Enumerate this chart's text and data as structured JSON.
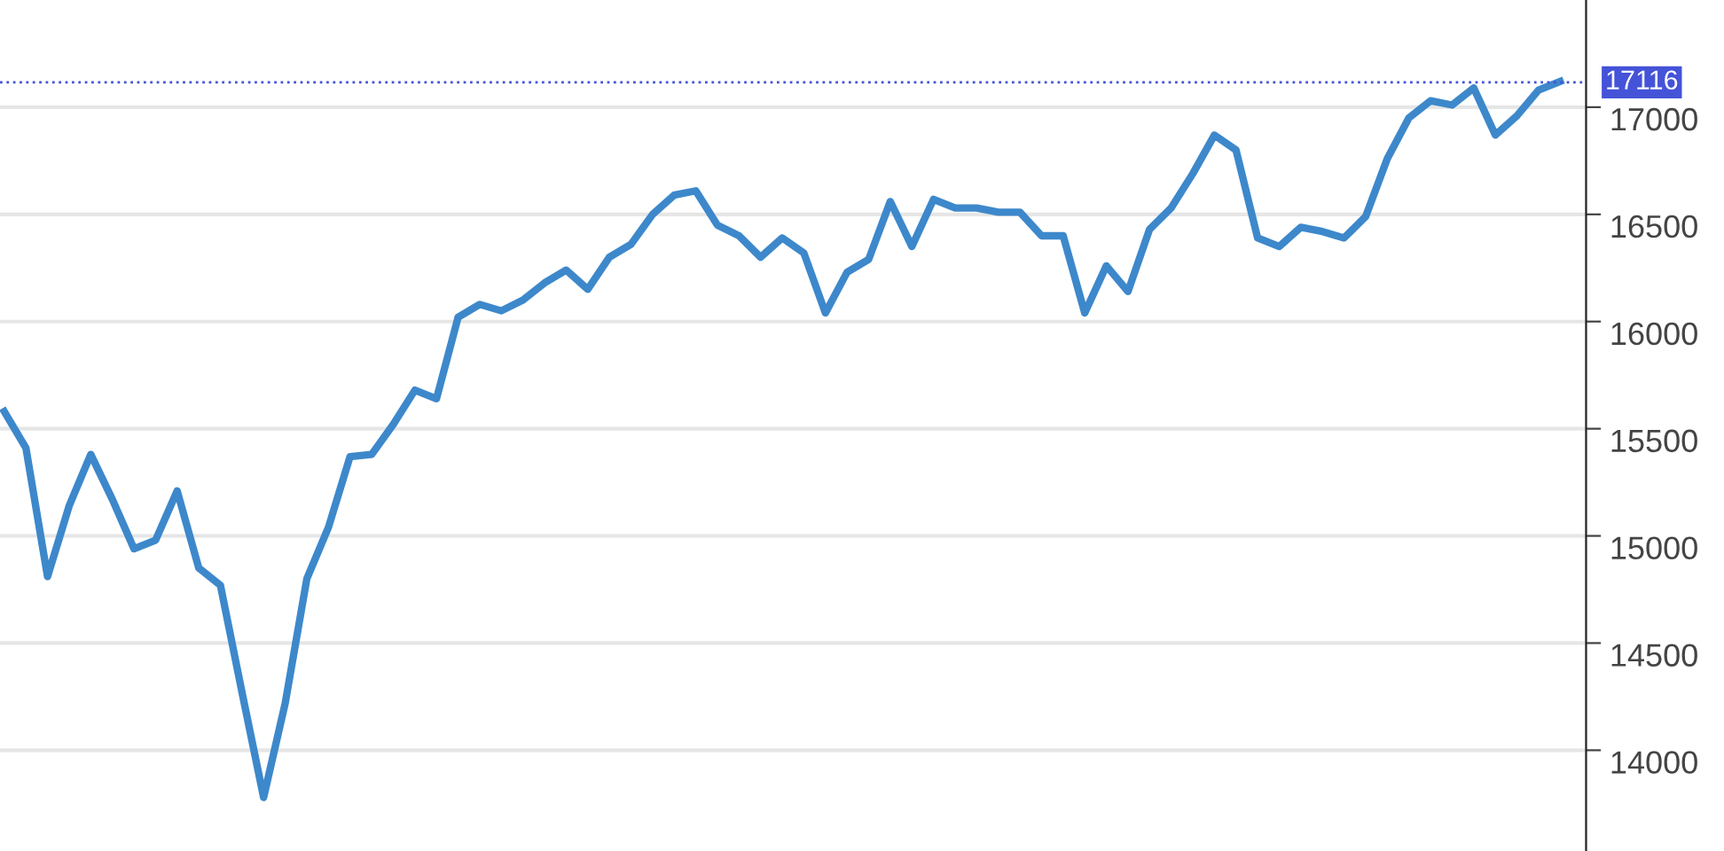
{
  "chart_data": {
    "type": "line",
    "categories": [
      null,
      null,
      null,
      null,
      null,
      null,
      null,
      null,
      null,
      null,
      null,
      null,
      null,
      null,
      null,
      null,
      null,
      null,
      null,
      null,
      null,
      null,
      null,
      null,
      null,
      null,
      null,
      null,
      null,
      null,
      null,
      null,
      null,
      null,
      null,
      null,
      null,
      null,
      null,
      null,
      null,
      null,
      null,
      null,
      null,
      null,
      null,
      null,
      null,
      null,
      null,
      null,
      null,
      null,
      null,
      null,
      null,
      null,
      null,
      null,
      null,
      null,
      null,
      null,
      null,
      null,
      null,
      null,
      null,
      null,
      null,
      null,
      null
    ],
    "series": [
      {
        "color": "#3d88cb",
        "values": [
          15580,
          15410,
          14810,
          15140,
          15380,
          15170,
          14940,
          14980,
          15210,
          14850,
          14770,
          14270,
          13780,
          14220,
          14800,
          15040,
          15370,
          15380,
          15520,
          15680,
          15640,
          16020,
          16080,
          16050,
          16100,
          16180,
          16240,
          16150,
          16300,
          16360,
          16500,
          16590,
          16610,
          16450,
          16400,
          16300,
          16390,
          16320,
          16040,
          16230,
          16290,
          16560,
          16350,
          16570,
          16530,
          16530,
          16510,
          16510,
          16400,
          16400,
          16040,
          16260,
          16140,
          16430,
          16530,
          16690,
          16870,
          16800,
          16390,
          16350,
          16440,
          16420,
          16390,
          16490,
          16760,
          16950,
          17030,
          17010,
          17090,
          16870,
          16960,
          17080,
          17120
        ]
      }
    ],
    "ylim": [
      13530,
      17500
    ],
    "yticks": [
      14000,
      14500,
      15000,
      15500,
      16000,
      16500,
      17000
    ],
    "grid": "y",
    "legend": false,
    "marker": "none",
    "line_style": "solid",
    "tick_labels": "y",
    "ref_lines": [
      {
        "axis": "y",
        "value": 17116,
        "label": "17116",
        "color": "#4453d8",
        "line_style": "dotted"
      }
    ]
  }
}
